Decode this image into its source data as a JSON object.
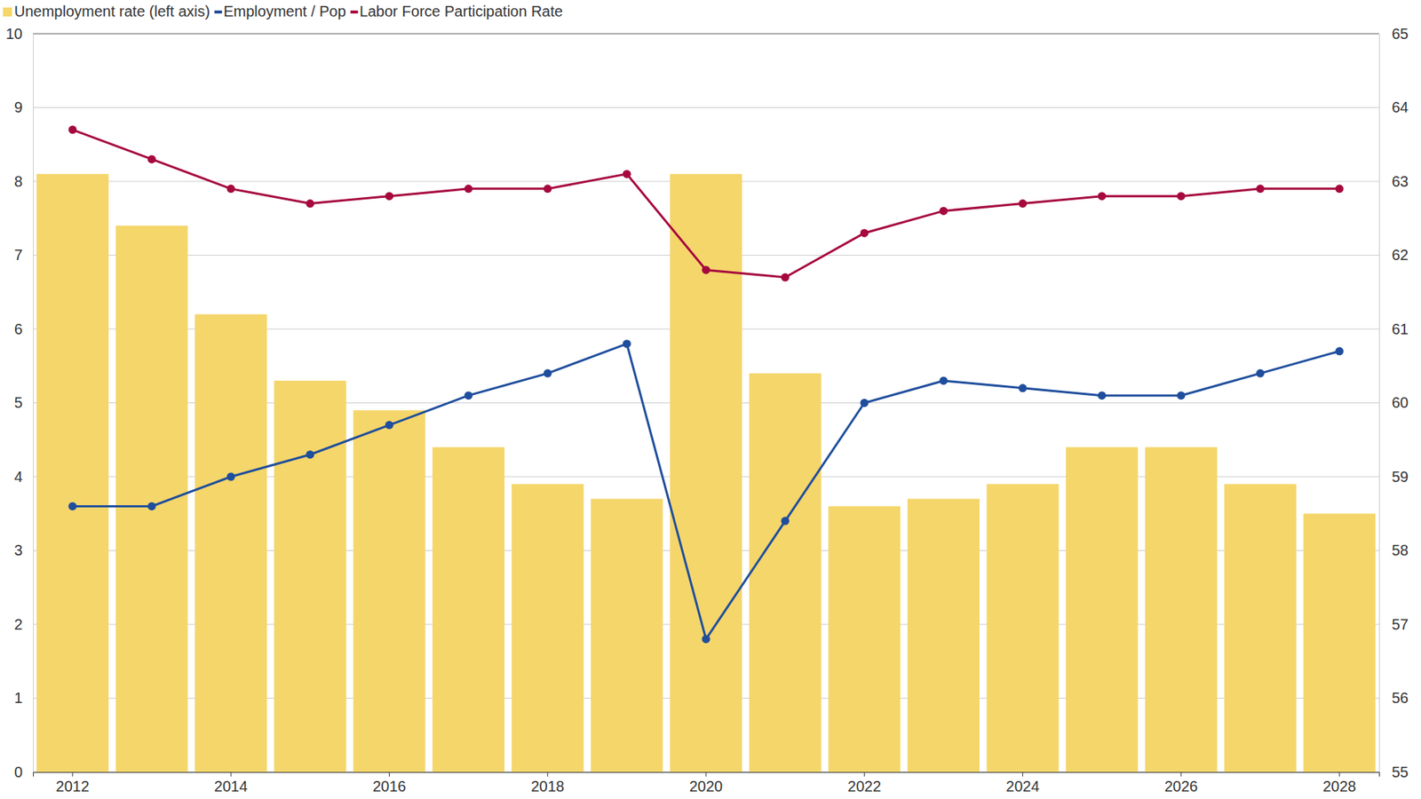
{
  "chart_data": {
    "type": "bar",
    "categories": [
      "2012",
      null,
      "2014",
      null,
      "2016",
      null,
      "2018",
      null,
      "2020",
      null,
      "2022",
      null,
      "2024",
      null,
      "2026",
      null,
      "2028"
    ],
    "series": [
      {
        "name": "Unemployment rate (left axis)",
        "type": "bar",
        "color": "#f5d66b",
        "values": [
          8.1,
          7.4,
          6.2,
          5.3,
          4.9,
          4.4,
          3.9,
          3.7,
          8.1,
          5.4,
          3.6,
          3.7,
          3.9,
          4.4,
          4.4,
          3.9,
          3.5
        ]
      },
      {
        "name": "Employment / Pop",
        "type": "line",
        "axis": "y2",
        "color": "#1f4e9c",
        "marker": "circle",
        "values": [
          58.6,
          58.6,
          59.0,
          59.3,
          59.7,
          60.1,
          60.4,
          60.8,
          56.8,
          58.4,
          60.0,
          60.3,
          60.2,
          60.1,
          60.1,
          60.4,
          60.7
        ]
      },
      {
        "name": "Labor Force Participation Rate",
        "type": "line",
        "axis": "y2",
        "color": "#a6093d",
        "marker": "circle",
        "values": [
          63.7,
          63.3,
          62.9,
          62.7,
          62.8,
          62.9,
          62.9,
          63.1,
          61.8,
          61.7,
          62.3,
          62.6,
          62.7,
          62.8,
          62.8,
          62.9,
          62.9
        ]
      }
    ],
    "ylim": [
      0,
      10
    ],
    "yticks": [
      0,
      1,
      2,
      3,
      4,
      5,
      6,
      7,
      8,
      9,
      10
    ],
    "y2lim": [
      55,
      65
    ],
    "y2ticks": [
      55,
      56,
      57,
      58,
      59,
      60,
      61,
      62,
      63,
      64,
      65
    ],
    "grid": true,
    "legend": "top-left"
  }
}
